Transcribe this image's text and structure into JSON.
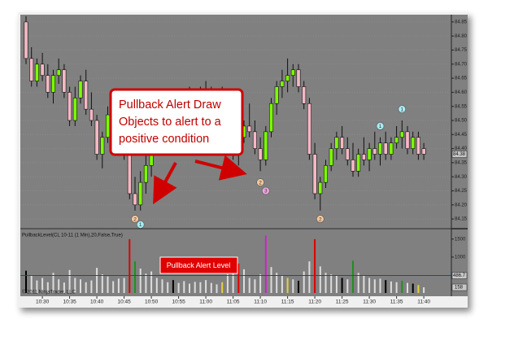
{
  "chart_data": [
    {
      "type": "candlestick",
      "categories": [
        null,
        null,
        null,
        "10:30",
        null,
        null,
        null,
        null,
        "10:35",
        null,
        null,
        null,
        null,
        "10:40",
        null,
        null,
        null,
        null,
        "10:45",
        null,
        null,
        null,
        null,
        "10:50",
        null,
        null,
        null,
        null,
        "10:55",
        null,
        null,
        null,
        null,
        "11:00",
        null,
        null,
        null,
        null,
        "11:05",
        null,
        null,
        null,
        null,
        "11:10",
        null,
        null,
        null,
        null,
        "11:15",
        null,
        null,
        null,
        null,
        "11:20",
        null,
        null,
        null,
        null,
        "11:25",
        null,
        null,
        null,
        null,
        "11:30",
        null,
        null,
        null,
        null,
        "11:35",
        null,
        null,
        null,
        null,
        "11:40"
      ],
      "open": [
        84.85,
        84.72,
        84.64,
        84.7,
        84.66,
        84.6,
        84.66,
        84.68,
        84.6,
        84.5,
        84.58,
        84.64,
        84.54,
        84.5,
        84.38,
        84.44,
        84.52,
        84.46,
        84.42,
        84.38,
        84.24,
        84.2,
        84.28,
        84.34,
        84.42,
        84.48,
        84.54,
        84.48,
        84.54,
        84.52,
        84.56,
        84.54,
        84.58,
        84.56,
        84.6,
        84.54,
        84.58,
        84.56,
        84.48,
        84.38,
        84.44,
        84.48,
        84.46,
        84.4,
        84.36,
        84.46,
        84.56,
        84.62,
        84.64,
        84.66,
        84.68,
        84.62,
        84.56,
        84.38,
        84.24,
        84.28,
        84.34,
        84.4,
        84.44,
        84.4,
        84.36,
        84.32,
        84.38,
        84.36,
        84.4,
        84.38,
        84.42,
        84.38,
        84.42,
        84.44,
        84.46,
        84.4,
        84.44,
        84.4
      ],
      "high": [
        84.87,
        84.76,
        84.72,
        84.74,
        84.7,
        84.68,
        84.72,
        84.7,
        84.62,
        84.62,
        84.66,
        84.68,
        84.6,
        84.52,
        84.46,
        84.55,
        84.56,
        84.5,
        84.48,
        84.42,
        84.3,
        84.32,
        84.38,
        84.44,
        84.5,
        84.56,
        84.58,
        84.56,
        84.6,
        84.58,
        84.62,
        84.6,
        84.62,
        84.64,
        84.62,
        84.6,
        84.62,
        84.6,
        84.52,
        84.46,
        84.5,
        84.56,
        84.5,
        84.44,
        84.48,
        84.58,
        84.64,
        84.68,
        84.72,
        84.7,
        84.7,
        84.64,
        84.58,
        84.42,
        84.3,
        84.36,
        84.42,
        84.46,
        84.48,
        84.44,
        84.42,
        84.4,
        84.44,
        84.42,
        84.46,
        84.44,
        84.46,
        84.44,
        84.48,
        84.5,
        84.48,
        84.46,
        84.46,
        84.42
      ],
      "low": [
        84.7,
        84.62,
        84.62,
        84.64,
        84.58,
        84.56,
        84.63,
        84.58,
        84.48,
        84.48,
        84.56,
        84.52,
        84.48,
        84.36,
        84.33,
        84.42,
        84.44,
        84.4,
        84.36,
        84.22,
        84.18,
        84.18,
        84.24,
        84.3,
        84.4,
        84.44,
        84.46,
        84.46,
        84.5,
        84.5,
        84.52,
        84.5,
        84.54,
        84.54,
        84.52,
        84.5,
        84.54,
        84.46,
        84.36,
        84.34,
        84.42,
        84.44,
        84.38,
        84.32,
        84.34,
        84.44,
        84.52,
        84.58,
        84.6,
        84.62,
        84.6,
        84.54,
        84.36,
        84.22,
        84.18,
        84.26,
        84.32,
        84.36,
        84.38,
        84.34,
        84.3,
        84.3,
        84.34,
        84.32,
        84.36,
        84.34,
        84.36,
        84.36,
        84.4,
        84.4,
        84.38,
        84.38,
        84.36,
        84.36
      ],
      "close": [
        84.72,
        84.64,
        84.7,
        84.66,
        84.6,
        84.66,
        84.68,
        84.6,
        84.5,
        84.58,
        84.64,
        84.54,
        84.5,
        84.38,
        84.44,
        84.52,
        84.46,
        84.42,
        84.38,
        84.24,
        84.2,
        84.28,
        84.34,
        84.42,
        84.48,
        84.54,
        84.48,
        84.54,
        84.52,
        84.56,
        84.54,
        84.58,
        84.56,
        84.6,
        84.54,
        84.58,
        84.56,
        84.48,
        84.38,
        84.44,
        84.48,
        84.46,
        84.4,
        84.36,
        84.46,
        84.56,
        84.62,
        84.64,
        84.66,
        84.68,
        84.62,
        84.56,
        84.38,
        84.24,
        84.28,
        84.34,
        84.4,
        84.44,
        84.4,
        84.36,
        84.32,
        84.38,
        84.36,
        84.4,
        84.38,
        84.42,
        84.38,
        84.42,
        84.44,
        84.46,
        84.4,
        84.44,
        84.38,
        84.38
      ],
      "up_color": "#7cfc00",
      "down_color": "#f4b8c4",
      "ylim": [
        84.13,
        84.87
      ],
      "yticks": [
        84.15,
        {
          "value": 84.2,
          "label": "84.20"
        },
        84.25,
        {
          "value": 84.3,
          "label": "84.30"
        },
        84.35,
        {
          "value": 84.4,
          "label": "84.40"
        },
        84.45,
        {
          "value": 84.5,
          "label": "84.50"
        },
        84.55,
        {
          "value": 84.6,
          "label": "84.60"
        },
        84.65,
        {
          "value": 84.7,
          "label": "84.70"
        },
        84.75,
        {
          "value": 84.8,
          "label": "84.80"
        },
        84.85
      ],
      "grid": true,
      "markers": [
        {
          "label": "2",
          "color": "#f2c8a0",
          "index": 20,
          "price": 84.15
        },
        {
          "label": "1",
          "color": "#a8ecf2",
          "index": 21,
          "price": 84.13
        },
        {
          "label": "2",
          "color": "#f2c8a0",
          "index": 43,
          "price": 84.28
        },
        {
          "label": "3",
          "color": "#f0a8e0",
          "index": 44,
          "price": 84.25
        },
        {
          "label": "2",
          "color": "#f2c8a0",
          "index": 54,
          "price": 84.15
        },
        {
          "label": "1",
          "color": "#a8ecf2",
          "index": 65,
          "price": 84.48
        },
        {
          "label": "1",
          "color": "#a8ecf2",
          "index": 69,
          "price": 84.54
        }
      ],
      "annotations": [
        "Pullback Alert Draw",
        "Objects to alert to a",
        "positive condition"
      ]
    },
    {
      "type": "bar",
      "title": "PullbackLevel(CL 10-11 (1 Min),20,False,True)",
      "values": [
        620,
        480,
        350,
        420,
        300,
        560,
        380,
        290,
        640,
        420,
        380,
        300,
        350,
        700,
        520,
        460,
        330,
        400,
        420,
        1500,
        880,
        680,
        540,
        600,
        420,
        380,
        300,
        360,
        280,
        330,
        260,
        310,
        300,
        360,
        280,
        240,
        300,
        520,
        760,
        820,
        660,
        420,
        380,
        520,
        1600,
        720,
        560,
        480,
        420,
        380,
        340,
        600,
        880,
        1500,
        740,
        560,
        520,
        480,
        420,
        380,
        900,
        560,
        480,
        420,
        380,
        400,
        360,
        320,
        300,
        340,
        280,
        260,
        220,
        158
      ],
      "colors": [
        "#000000",
        "#dddddd",
        "#dddddd",
        "#dddddd",
        "#dddddd",
        "#dddddd",
        "#dddddd",
        "#dddddd",
        "#dddddd",
        "#dddddd",
        "#dddddd",
        "#dddddd",
        "#dddddd",
        "#dddddd",
        "#dddddd",
        "#dddddd",
        "#dddddd",
        "#dddddd",
        "#dddddd",
        "#e00000",
        "#1f8f1f",
        "#dddddd",
        "#dddddd",
        "#dddddd",
        "#dddddd",
        "#dddddd",
        "#dddddd",
        "#000000",
        "#dddddd",
        "#dddddd",
        "#dddddd",
        "#dddddd",
        "#dddddd",
        "#dddddd",
        "#dddddd",
        "#dddddd",
        "#e8d040",
        "#dddddd",
        "#dddddd",
        "#e00000",
        "#dddddd",
        "#dddddd",
        "#dddddd",
        "#dddddd",
        "#d020d0",
        "#dddddd",
        "#dddddd",
        "#dddddd",
        "#e8d040",
        "#dddddd",
        "#000000",
        "#dddddd",
        "#dddddd",
        "#e00000",
        "#dddddd",
        "#dddddd",
        "#dddddd",
        "#dddddd",
        "#000000",
        "#dddddd",
        "#1f8f1f",
        "#dddddd",
        "#dddddd",
        "#dddddd",
        "#dddddd",
        "#dddddd",
        "#000000",
        "#dddddd",
        "#dddddd",
        "#1f8f1f",
        "#dddddd",
        "#000000",
        "#e8d040",
        "#dddddd"
      ],
      "ylim": [
        0,
        1700
      ],
      "yticks": [
        1000,
        1500
      ],
      "alert_level": 486.7,
      "alert_color": "#e00000",
      "annotation": "Pullback Alert Level",
      "copyright": "© 2011 NinjaTrader, LLC"
    }
  ]
}
